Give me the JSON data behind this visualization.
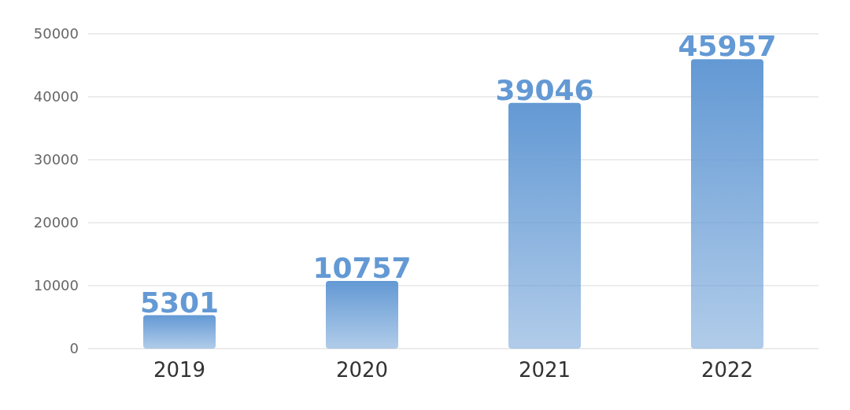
{
  "chart_data": {
    "type": "bar",
    "categories": [
      "2019",
      "2020",
      "2021",
      "2022"
    ],
    "values": [
      5301,
      10757,
      39046,
      45957
    ],
    "color": "#6399d4",
    "ylim": [
      0,
      50000
    ],
    "yticks": [
      0,
      10000,
      20000,
      30000,
      40000,
      50000
    ],
    "grid": "y",
    "data_labels": true
  }
}
